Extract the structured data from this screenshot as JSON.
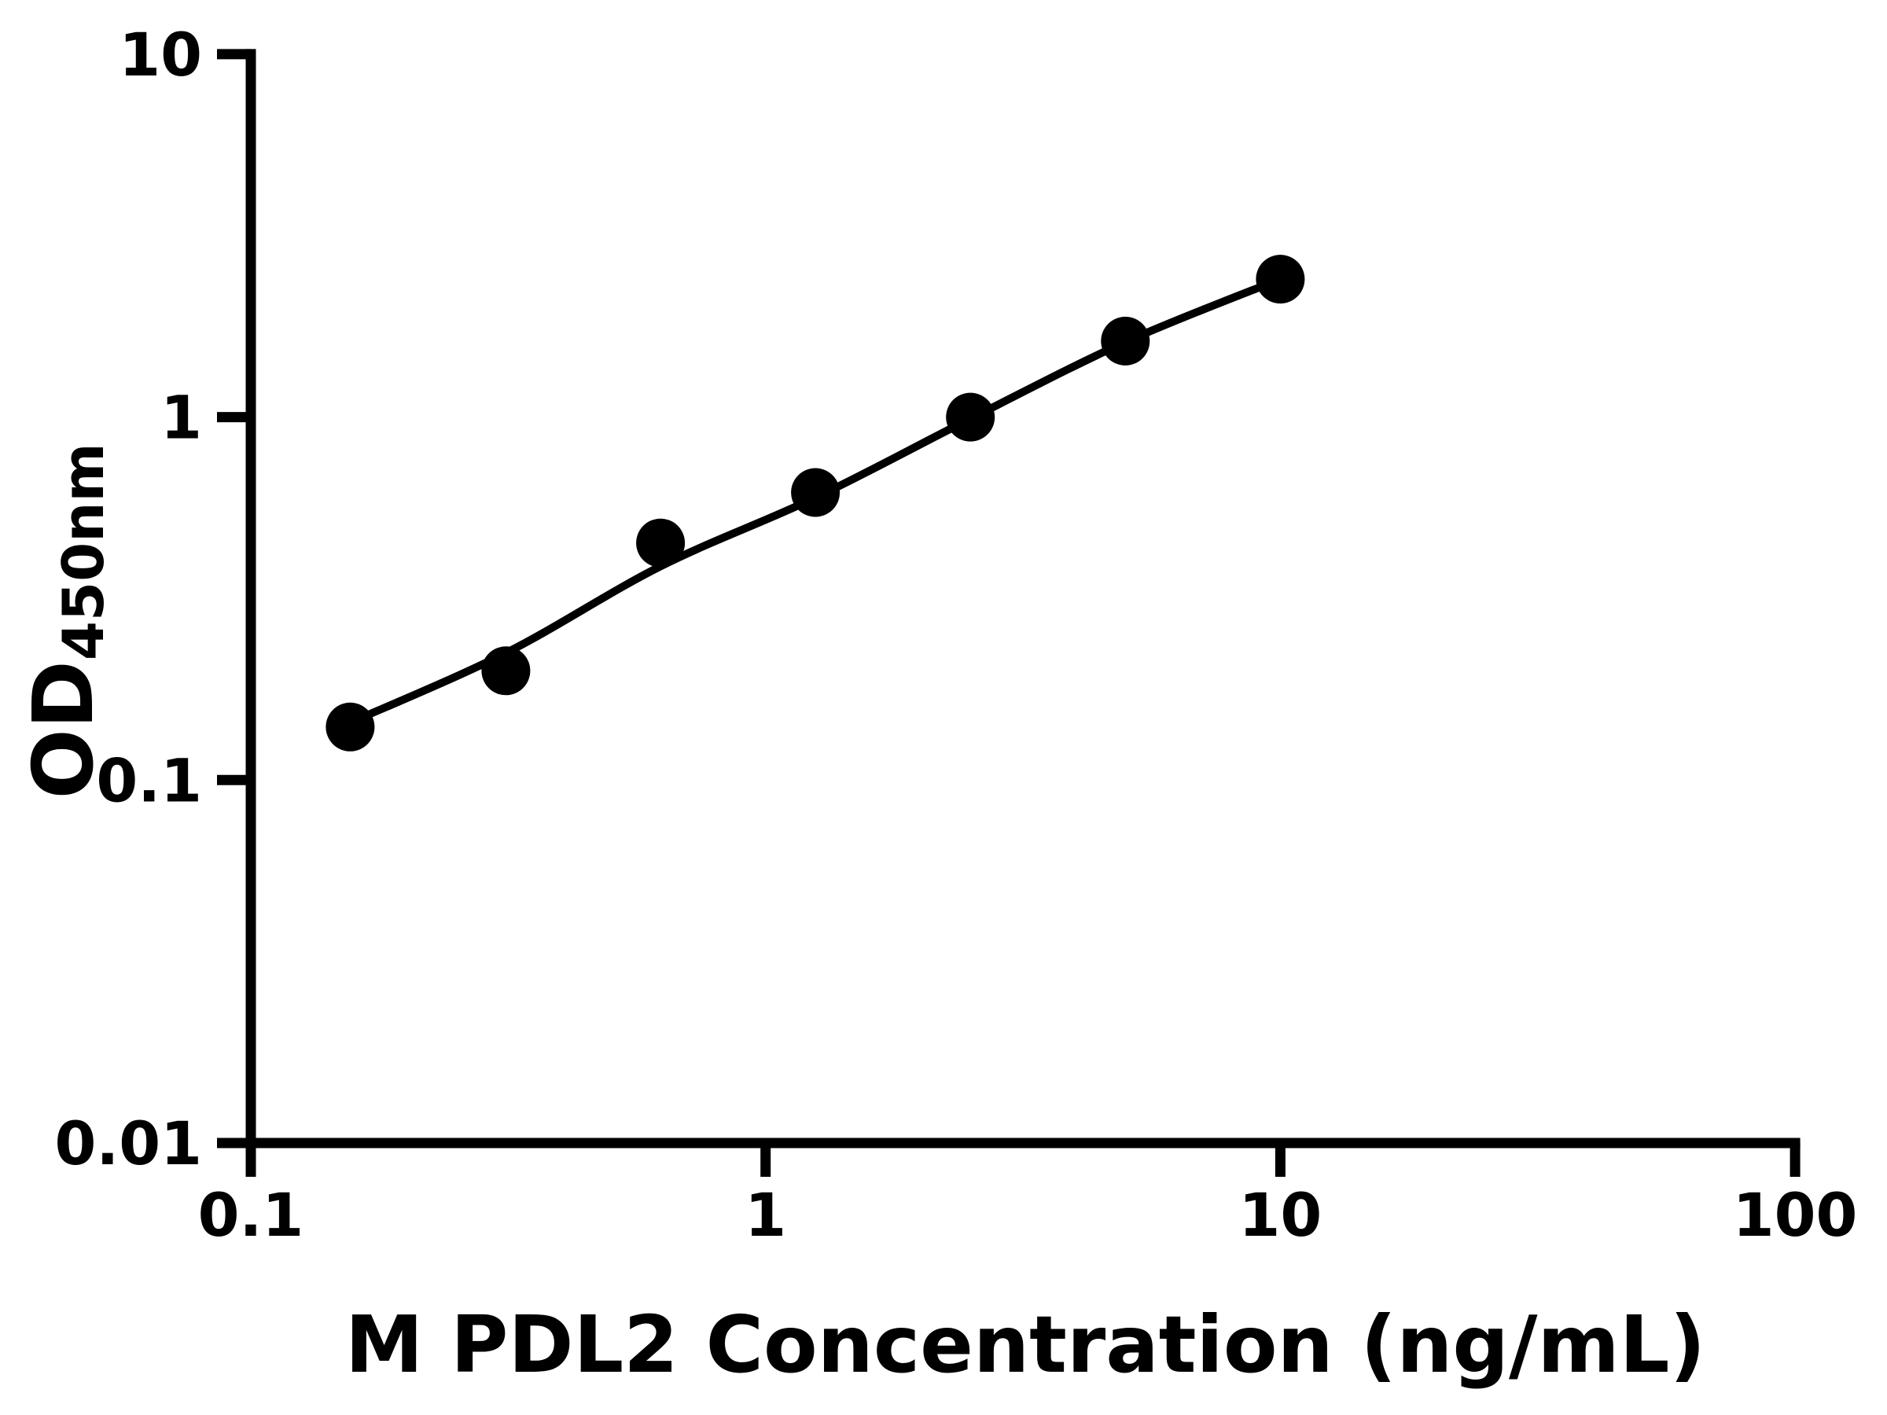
{
  "figure": {
    "background": "#ffffff"
  },
  "chart_data": {
    "type": "scatter",
    "scale": "log-log",
    "title": "",
    "xlabel": "M PDL2 Concentration (ng/mL)",
    "ylabel_main": "OD",
    "ylabel_sub": "450nm",
    "xlim": [
      0.1,
      100
    ],
    "ylim": [
      0.01,
      10
    ],
    "x_tick_values": [
      0.1,
      1,
      10,
      100
    ],
    "x_tick_labels": [
      "0.1",
      "1",
      "10",
      "100"
    ],
    "y_tick_values": [
      0.01,
      0.1,
      1,
      10
    ],
    "y_tick_labels": [
      "0.01",
      "0.1",
      "1",
      "10"
    ],
    "grid": false,
    "legend": null,
    "axis_color": "#000000",
    "series": [
      {
        "name": "standard-points",
        "type": "scatter",
        "marker": "circle",
        "color": "#000000",
        "x": [
          0.156,
          0.313,
          0.625,
          1.25,
          2.5,
          5,
          10
        ],
        "y": [
          0.14,
          0.2,
          0.45,
          0.62,
          1.0,
          1.62,
          2.4
        ]
      },
      {
        "name": "fit-line",
        "type": "line",
        "color": "#000000",
        "x": [
          0.156,
          0.313,
          0.625,
          1.25,
          2.5,
          5,
          10
        ],
        "y": [
          0.144,
          0.224,
          0.388,
          0.6,
          0.99,
          1.61,
          2.4
        ]
      }
    ]
  }
}
